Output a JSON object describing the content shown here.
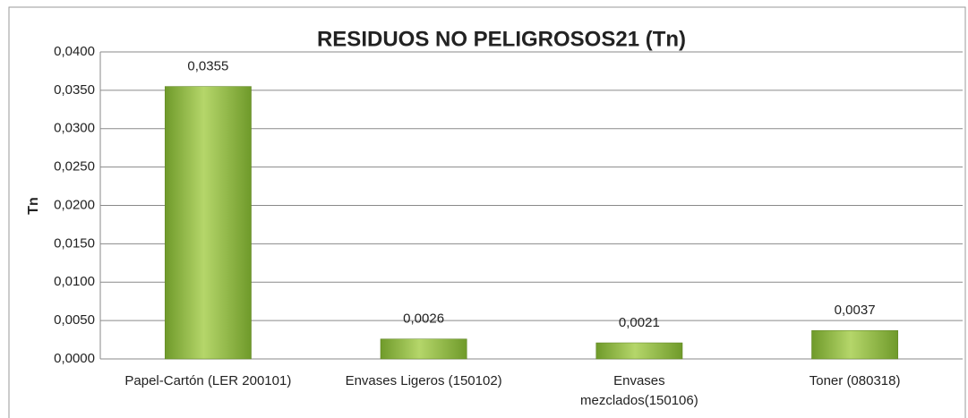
{
  "chart_data": {
    "type": "bar",
    "title": "RESIDUOS NO PELIGROSOS21 (Tn)",
    "y_label": "Tn",
    "categories": [
      "Papel-Cartón (LER 200101)",
      "Envases Ligeros (150102)",
      "Envases mezclados(150106)",
      "Toner (080318)"
    ],
    "values": [
      0.0355,
      0.0026,
      0.0021,
      0.0037
    ],
    "value_labels": [
      "0,0355",
      "0,0026",
      "0,0021",
      "0,0037"
    ],
    "color": "#8db33a",
    "ylim": [
      0,
      0.04
    ],
    "yticks": [
      {
        "value": 0,
        "label": "0,0000"
      },
      {
        "value": 0.005,
        "label": "0,0050"
      },
      {
        "value": 0.01,
        "label": "0,0100"
      },
      {
        "value": 0.015,
        "label": "0,0150"
      },
      {
        "value": 0.02,
        "label": "0,0200"
      },
      {
        "value": 0.025,
        "label": "0,0250"
      },
      {
        "value": 0.03,
        "label": "0,0300"
      },
      {
        "value": 0.035,
        "label": "0,0350"
      },
      {
        "value": 0.04,
        "label": "0,0400"
      }
    ],
    "grid": true
  }
}
